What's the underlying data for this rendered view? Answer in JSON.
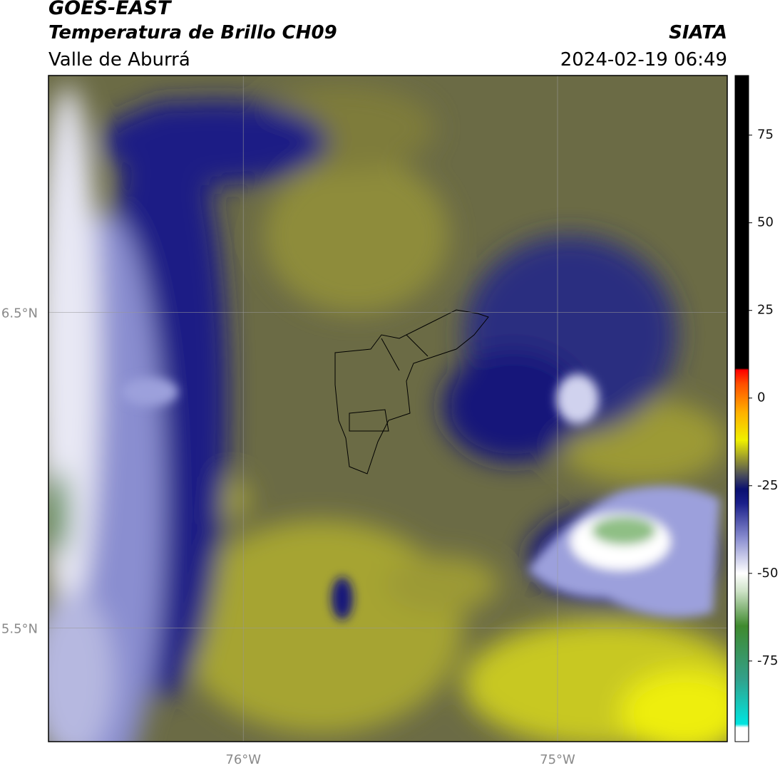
{
  "header": {
    "title": "GOES-EAST",
    "subtitle": "Temperatura de Brillo CH09",
    "source": "SIATA",
    "region": "Valle de Aburrá",
    "datetime": "2024-02-19 06:49"
  },
  "map": {
    "xlim": [
      -76.62,
      -74.46
    ],
    "ylim": [
      5.14,
      7.25
    ],
    "xticks": [
      {
        "value": -76,
        "label": "76°W"
      },
      {
        "value": -75,
        "label": "75°W"
      }
    ],
    "yticks": [
      {
        "value": 6.5,
        "label": "6.5°N"
      },
      {
        "value": 5.5,
        "label": "5.5°N"
      }
    ],
    "grid": true
  },
  "colorbar": {
    "lim": [
      -98,
      92
    ],
    "ticks": [
      75,
      50,
      25,
      0,
      -25,
      -50,
      -75
    ],
    "stops": [
      {
        "value": -98,
        "color": "#ffffff"
      },
      {
        "value": -94,
        "color": "#ffffff"
      },
      {
        "value": -93,
        "color": "#00e5e0"
      },
      {
        "value": -80,
        "color": "#33a08a"
      },
      {
        "value": -65,
        "color": "#3f8a2e"
      },
      {
        "value": -55,
        "color": "#cfe3c8"
      },
      {
        "value": -50,
        "color": "#ffffff"
      },
      {
        "value": -40,
        "color": "#8a8ed0"
      },
      {
        "value": -30,
        "color": "#1a1f8a"
      },
      {
        "value": -26,
        "color": "#0a1070"
      },
      {
        "value": -22,
        "color": "#4a4d5a"
      },
      {
        "value": -18,
        "color": "#8c8c35"
      },
      {
        "value": -12,
        "color": "#f0f000"
      },
      {
        "value": -4,
        "color": "#ffb000"
      },
      {
        "value": 4,
        "color": "#ff5000"
      },
      {
        "value": 8,
        "color": "#ff0000"
      },
      {
        "value": 8.5,
        "color": "#000000"
      },
      {
        "value": 92,
        "color": "#000000"
      }
    ]
  }
}
